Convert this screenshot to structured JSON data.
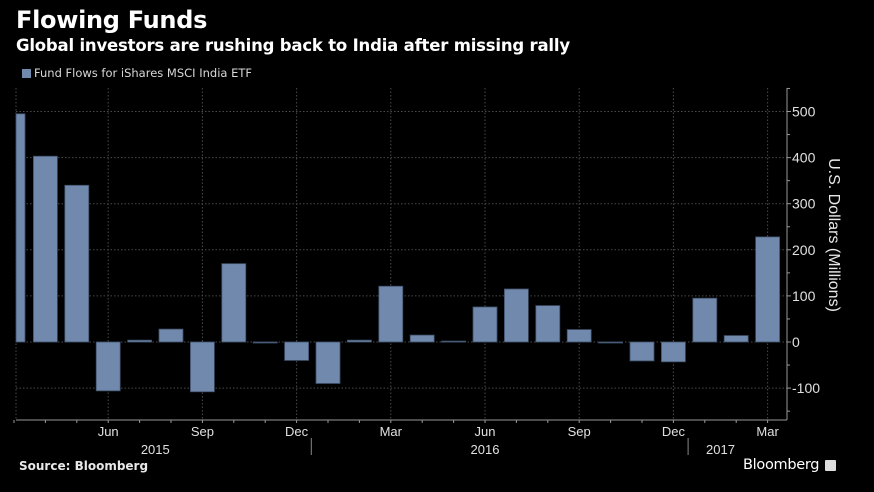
{
  "header": {
    "title": "Flowing Funds",
    "subtitle": "Global investors are rushing back to India after missing rally"
  },
  "footer": {
    "source": "Source: Bloomberg",
    "brand": "Bloomberg"
  },
  "colors": {
    "bar": "#7189ad",
    "background": "#000000",
    "grid": "#555555"
  },
  "chart_data": {
    "type": "bar",
    "title": "Flowing Funds",
    "subtitle": "Global investors are rushing back to India after missing rally",
    "legend": [
      {
        "name": "Fund Flows for iShares MSCI India ETF",
        "position": "top-left"
      }
    ],
    "xlabel": "",
    "ylabel": "U.S. Dollars (Millions)",
    "ylim": [
      -170,
      560
    ],
    "yticks": [
      -100,
      0,
      100,
      200,
      300,
      400,
      500
    ],
    "ytick_labels": [
      "-100",
      "0",
      "100",
      "200",
      "300",
      "400",
      "500"
    ],
    "y_axis_side": "right",
    "grid": true,
    "categories": [
      "Mar 2015",
      "Apr 2015",
      "May 2015",
      "Jun 2015",
      "Jul 2015",
      "Aug 2015",
      "Sep 2015",
      "Oct 2015",
      "Nov 2015",
      "Dec 2015",
      "Jan 2016",
      "Feb 2016",
      "Mar 2016",
      "Apr 2016",
      "May 2016",
      "Jun 2016",
      "Jul 2016",
      "Aug 2016",
      "Sep 2016",
      "Oct 2016",
      "Nov 2016",
      "Dec 2016",
      "Jan 2017",
      "Feb 2017",
      "Mar 2017"
    ],
    "series": [
      {
        "name": "Fund Flows for iShares MSCI India ETF",
        "values": [
          495,
          403,
          340,
          -106,
          4,
          28,
          -108,
          170,
          -1,
          -40,
          -90,
          4,
          121,
          15,
          2,
          76,
          115,
          79,
          27,
          -1,
          -41,
          -43,
          95,
          14,
          228
        ]
      }
    ],
    "xtick_labels": [
      {
        "label": "Jun",
        "index": 3
      },
      {
        "label": "Sep",
        "index": 6
      },
      {
        "label": "Dec",
        "index": 9
      },
      {
        "label": "Mar",
        "index": 12
      },
      {
        "label": "Jun",
        "index": 15
      },
      {
        "label": "Sep",
        "index": 18
      },
      {
        "label": "Dec",
        "index": 21
      },
      {
        "label": "Mar",
        "index": 24
      }
    ],
    "year_labels": [
      {
        "label": "2015",
        "center_index": 4.5
      },
      {
        "label": "2016",
        "center_index": 15
      },
      {
        "label": "2017",
        "center_index": 22.5
      }
    ],
    "year_dividers": [
      9.5,
      21.5
    ]
  }
}
